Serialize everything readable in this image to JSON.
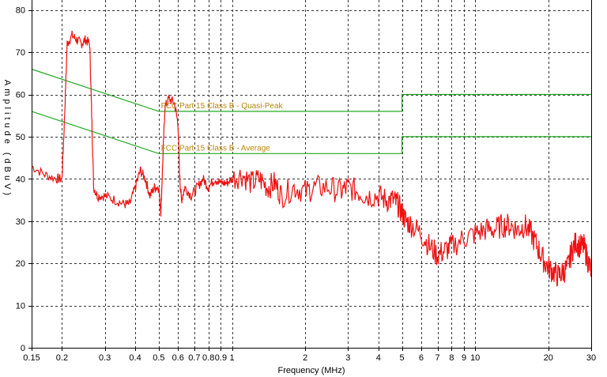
{
  "chart_data": {
    "type": "line",
    "xlabel": "Frequency (MHz)",
    "ylabel": "Amplitude (dBuV)",
    "x_scale": "log",
    "xlim": [
      0.15,
      30
    ],
    "ylim": [
      0,
      85
    ],
    "grid": true,
    "x_ticks": [
      0.15,
      0.2,
      0.3,
      0.4,
      0.5,
      0.6,
      0.7,
      0.8,
      0.9,
      1,
      2,
      3,
      4,
      5,
      6,
      7,
      8,
      9,
      10,
      20,
      30
    ],
    "x_tick_labels": [
      "0.15",
      "0.2",
      "0.3",
      "0.4",
      "0.5",
      "0.6",
      "0.7",
      "0.8",
      "0.9",
      "1",
      "2",
      "3",
      "4",
      "5",
      "6",
      "7",
      "8",
      "9",
      "10",
      "20",
      "30"
    ],
    "y_ticks": [
      0,
      10,
      20,
      30,
      40,
      50,
      60,
      70,
      80
    ],
    "y_tick_labels": [
      "0",
      "10",
      "20",
      "30",
      "40",
      "50",
      "60",
      "70",
      "80"
    ],
    "series": [
      {
        "name": "FCC Part 15 Class B - Quasi-Peak",
        "color": "#22aa22",
        "x": [
          0.15,
          0.5,
          0.5,
          5,
          5,
          30
        ],
        "y": [
          66,
          56,
          56,
          56,
          60,
          60
        ]
      },
      {
        "name": "FCC Part 15 Class B - Average",
        "color": "#22aa22",
        "x": [
          0.15,
          0.5,
          0.5,
          5,
          5,
          30
        ],
        "y": [
          56,
          46,
          46,
          46,
          50,
          50
        ]
      },
      {
        "name": "",
        "color": "#ee1111",
        "x": [
          0.15,
          0.17,
          0.19,
          0.2,
          0.205,
          0.21,
          0.22,
          0.23,
          0.24,
          0.25,
          0.26,
          0.265,
          0.27,
          0.28,
          0.3,
          0.33,
          0.36,
          0.38,
          0.4,
          0.42,
          0.44,
          0.46,
          0.48,
          0.5,
          0.51,
          0.52,
          0.53,
          0.55,
          0.58,
          0.6,
          0.61,
          0.62,
          0.64,
          0.68,
          0.72,
          0.76,
          0.8,
          0.85,
          0.9,
          0.95,
          1,
          1.1,
          1.2,
          1.3,
          1.4,
          1.5,
          1.6,
          1.8,
          2,
          2.2,
          2.5,
          2.8,
          3,
          3.3,
          3.6,
          4,
          4.3,
          4.6,
          4.8,
          5,
          5.2,
          5.5,
          6,
          6.5,
          7,
          7.5,
          8,
          9,
          10,
          11,
          12,
          13,
          14,
          15,
          16,
          17,
          18,
          19,
          20,
          21,
          22,
          23,
          24,
          25,
          26,
          27,
          28,
          29,
          30
        ],
        "y": [
          43,
          41,
          40,
          40,
          55,
          72,
          74,
          73,
          72,
          73,
          72,
          55,
          38,
          36,
          36,
          35,
          34,
          34,
          38,
          42,
          40,
          36,
          38,
          38,
          32,
          45,
          57,
          59,
          58,
          53,
          40,
          35,
          38,
          36,
          38,
          40,
          38,
          40,
          39,
          39,
          40,
          41,
          39,
          40,
          38,
          39,
          36,
          38,
          37,
          38,
          38,
          37,
          38,
          37,
          36,
          36,
          35,
          35,
          34,
          32,
          30,
          29,
          27,
          24,
          22,
          23,
          24,
          26,
          27,
          28,
          28,
          29,
          29,
          28,
          29,
          27,
          24,
          21,
          19,
          18,
          17,
          18,
          19,
          23,
          25,
          24,
          24,
          21,
          18
        ]
      }
    ],
    "annotations": [
      {
        "text": "FCC Part 15 Class B - Quasi-Peak",
        "x": 0.55,
        "y": 56
      },
      {
        "text": "FCC Part 15 Class B - Average",
        "x": 0.55,
        "y": 46
      }
    ]
  }
}
